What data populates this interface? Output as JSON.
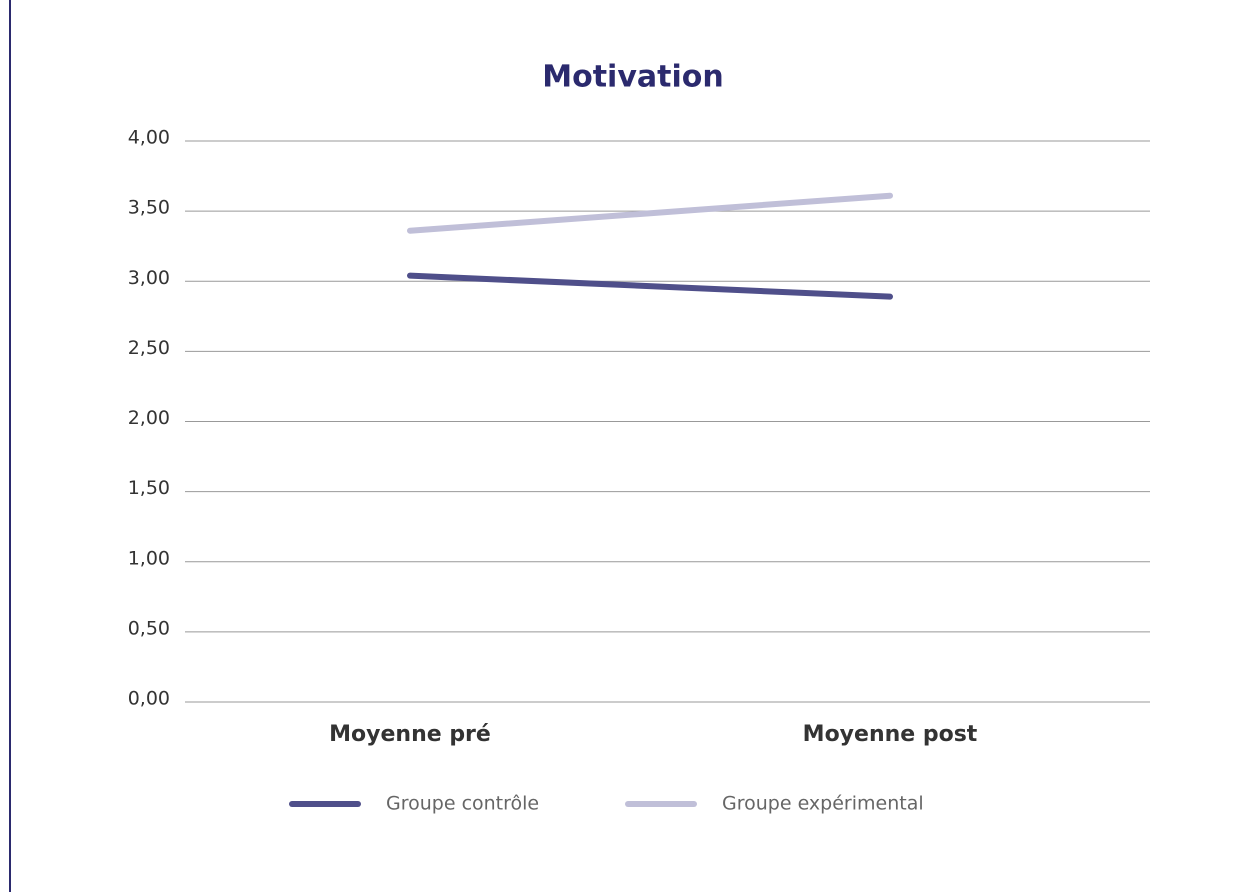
{
  "chart_data": {
    "type": "line",
    "title": "Motivation",
    "categories": [
      "Moyenne pré",
      "Moyenne post"
    ],
    "series": [
      {
        "name": "Groupe contrôle",
        "color": "#4f4f8a",
        "values": [
          3.04,
          2.89
        ]
      },
      {
        "name": "Groupe expérimental",
        "color": "#c0bfd8",
        "values": [
          3.36,
          3.61
        ]
      }
    ],
    "ylim": [
      0,
      4
    ],
    "yticks": [
      {
        "value": 0,
        "label": "0,00"
      },
      {
        "value": 0.5,
        "label": "0,50"
      },
      {
        "value": 1,
        "label": "1,00"
      },
      {
        "value": 1.5,
        "label": "1,50"
      },
      {
        "value": 2,
        "label": "2,00"
      },
      {
        "value": 2.5,
        "label": "2,50"
      },
      {
        "value": 3,
        "label": "3,00"
      },
      {
        "value": 3.5,
        "label": "3,50"
      },
      {
        "value": 4,
        "label": "4,00"
      }
    ],
    "grid": true,
    "legend": "bottom"
  }
}
